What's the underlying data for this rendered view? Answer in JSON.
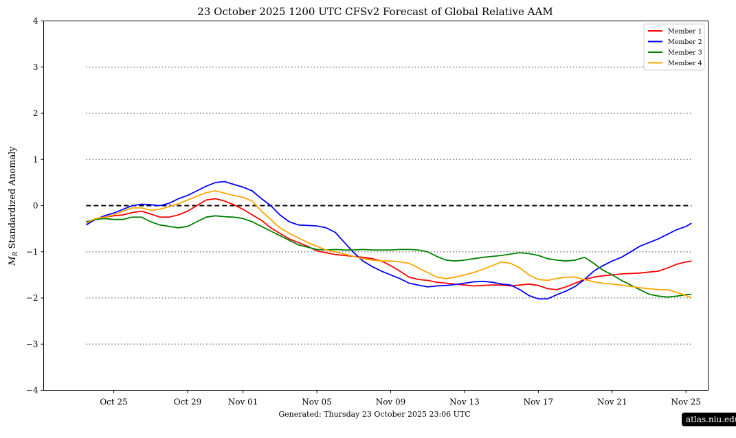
{
  "footer": {
    "generated": "Generated: Thursday  23  October  2025  23:06 UTC"
  },
  "watermark": {
    "text": "atlas.niu.edu"
  },
  "chart_data": {
    "type": "line",
    "title": "23  October  2025 1200 UTC   CFSv2 Forecast of Global Relative AAM",
    "ylabel": "M_R Standardized Anomaly",
    "xlabel": "",
    "ylim": [
      -4,
      4
    ],
    "yticks": [
      -4,
      -3,
      -2,
      -1,
      0,
      1,
      2,
      3,
      4
    ],
    "ytick_labels": [
      "−4",
      "−3",
      "−2",
      "−1",
      "0",
      "1",
      "2",
      "3",
      "4"
    ],
    "xlim": [
      -3.8,
      32.2
    ],
    "xticks": [
      {
        "x": 0,
        "label": "Oct 25"
      },
      {
        "x": 4,
        "label": "Oct 29"
      },
      {
        "x": 7,
        "label": "Nov 01"
      },
      {
        "x": 11,
        "label": "Nov 05"
      },
      {
        "x": 15,
        "label": "Nov 09"
      },
      {
        "x": 19,
        "label": "Nov 13"
      },
      {
        "x": 23,
        "label": "Nov 17"
      },
      {
        "x": 27,
        "label": "Nov 21"
      },
      {
        "x": 31,
        "label": "Nov 25"
      }
    ],
    "reference_lines": [
      {
        "y": 0,
        "style": "dashed"
      },
      {
        "y": 3,
        "style": "dotted"
      },
      {
        "y": 2,
        "style": "dotted"
      },
      {
        "y": 1,
        "style": "dotted"
      },
      {
        "y": -1,
        "style": "dotted"
      },
      {
        "y": -2,
        "style": "dotted"
      },
      {
        "y": -3,
        "style": "dotted"
      }
    ],
    "legend_position": "top-right",
    "grid": false,
    "series": [
      {
        "name": "Member 1",
        "color": "#ff0000",
        "points": [
          [
            -1.5,
            -0.38
          ],
          [
            -1,
            -0.3
          ],
          [
            -0.5,
            -0.25
          ],
          [
            0,
            -0.22
          ],
          [
            0.5,
            -0.2
          ],
          [
            1,
            -0.15
          ],
          [
            1.5,
            -0.12
          ],
          [
            2,
            -0.18
          ],
          [
            2.5,
            -0.25
          ],
          [
            3,
            -0.25
          ],
          [
            3.5,
            -0.2
          ],
          [
            4,
            -0.12
          ],
          [
            4.5,
            0.0
          ],
          [
            5,
            0.12
          ],
          [
            5.5,
            0.15
          ],
          [
            6,
            0.1
          ],
          [
            6.5,
            0.02
          ],
          [
            7,
            -0.08
          ],
          [
            7.5,
            -0.2
          ],
          [
            8,
            -0.32
          ],
          [
            8.5,
            -0.48
          ],
          [
            9,
            -0.6
          ],
          [
            9.5,
            -0.72
          ],
          [
            10,
            -0.8
          ],
          [
            10.5,
            -0.88
          ],
          [
            11,
            -0.98
          ],
          [
            11.5,
            -1.02
          ],
          [
            12,
            -1.06
          ],
          [
            12.5,
            -1.08
          ],
          [
            13,
            -1.1
          ],
          [
            13.5,
            -1.12
          ],
          [
            14,
            -1.15
          ],
          [
            14.5,
            -1.2
          ],
          [
            15,
            -1.3
          ],
          [
            15.5,
            -1.42
          ],
          [
            16,
            -1.55
          ],
          [
            16.5,
            -1.6
          ],
          [
            17,
            -1.62
          ],
          [
            17.5,
            -1.66
          ],
          [
            18,
            -1.68
          ],
          [
            18.5,
            -1.7
          ],
          [
            19,
            -1.72
          ],
          [
            19.5,
            -1.74
          ],
          [
            20,
            -1.73
          ],
          [
            20.5,
            -1.72
          ],
          [
            21,
            -1.72
          ],
          [
            21.5,
            -1.74
          ],
          [
            22,
            -1.72
          ],
          [
            22.5,
            -1.7
          ],
          [
            23,
            -1.73
          ],
          [
            23.5,
            -1.8
          ],
          [
            24,
            -1.82
          ],
          [
            24.5,
            -1.76
          ],
          [
            25,
            -1.68
          ],
          [
            25.5,
            -1.6
          ],
          [
            26,
            -1.55
          ],
          [
            26.5,
            -1.52
          ],
          [
            27,
            -1.5
          ],
          [
            27.5,
            -1.48
          ],
          [
            28,
            -1.47
          ],
          [
            28.5,
            -1.46
          ],
          [
            29,
            -1.44
          ],
          [
            29.5,
            -1.42
          ],
          [
            30,
            -1.35
          ],
          [
            30.5,
            -1.27
          ],
          [
            31,
            -1.22
          ],
          [
            31.3,
            -1.2
          ]
        ]
      },
      {
        "name": "Member 2",
        "color": "#0000ff",
        "points": [
          [
            -1.5,
            -0.42
          ],
          [
            -1,
            -0.3
          ],
          [
            -0.5,
            -0.22
          ],
          [
            0,
            -0.16
          ],
          [
            0.5,
            -0.08
          ],
          [
            1,
            0.0
          ],
          [
            1.5,
            0.03
          ],
          [
            2,
            0.02
          ],
          [
            2.5,
            0.0
          ],
          [
            3,
            0.05
          ],
          [
            3.5,
            0.15
          ],
          [
            4,
            0.22
          ],
          [
            4.5,
            0.32
          ],
          [
            5,
            0.42
          ],
          [
            5.5,
            0.5
          ],
          [
            6,
            0.52
          ],
          [
            6.5,
            0.46
          ],
          [
            7,
            0.4
          ],
          [
            7.5,
            0.32
          ],
          [
            8,
            0.15
          ],
          [
            8.5,
            0.0
          ],
          [
            9,
            -0.2
          ],
          [
            9.5,
            -0.35
          ],
          [
            10,
            -0.42
          ],
          [
            10.5,
            -0.43
          ],
          [
            11,
            -0.44
          ],
          [
            11.5,
            -0.48
          ],
          [
            12,
            -0.58
          ],
          [
            12.5,
            -0.8
          ],
          [
            13,
            -1.02
          ],
          [
            13.5,
            -1.2
          ],
          [
            14,
            -1.32
          ],
          [
            14.5,
            -1.42
          ],
          [
            15,
            -1.5
          ],
          [
            15.5,
            -1.58
          ],
          [
            16,
            -1.68
          ],
          [
            16.5,
            -1.72
          ],
          [
            17,
            -1.76
          ],
          [
            17.5,
            -1.74
          ],
          [
            18,
            -1.73
          ],
          [
            18.5,
            -1.71
          ],
          [
            19,
            -1.68
          ],
          [
            19.5,
            -1.65
          ],
          [
            20,
            -1.64
          ],
          [
            20.5,
            -1.66
          ],
          [
            21,
            -1.7
          ],
          [
            21.5,
            -1.72
          ],
          [
            22,
            -1.82
          ],
          [
            22.5,
            -1.95
          ],
          [
            23,
            -2.02
          ],
          [
            23.5,
            -2.02
          ],
          [
            24,
            -1.93
          ],
          [
            24.5,
            -1.85
          ],
          [
            25,
            -1.75
          ],
          [
            25.5,
            -1.6
          ],
          [
            26,
            -1.42
          ],
          [
            26.5,
            -1.3
          ],
          [
            27,
            -1.2
          ],
          [
            27.5,
            -1.12
          ],
          [
            28,
            -1.0
          ],
          [
            28.5,
            -0.88
          ],
          [
            29,
            -0.8
          ],
          [
            29.5,
            -0.72
          ],
          [
            30,
            -0.62
          ],
          [
            30.5,
            -0.52
          ],
          [
            31,
            -0.45
          ],
          [
            31.3,
            -0.38
          ]
        ]
      },
      {
        "name": "Member 3",
        "color": "#008000",
        "points": [
          [
            -1.5,
            -0.35
          ],
          [
            -1,
            -0.3
          ],
          [
            -0.5,
            -0.28
          ],
          [
            0,
            -0.3
          ],
          [
            0.5,
            -0.3
          ],
          [
            1,
            -0.25
          ],
          [
            1.5,
            -0.25
          ],
          [
            2,
            -0.35
          ],
          [
            2.5,
            -0.42
          ],
          [
            3,
            -0.45
          ],
          [
            3.5,
            -0.48
          ],
          [
            4,
            -0.45
          ],
          [
            4.5,
            -0.35
          ],
          [
            5,
            -0.25
          ],
          [
            5.5,
            -0.22
          ],
          [
            6,
            -0.24
          ],
          [
            6.5,
            -0.25
          ],
          [
            7,
            -0.28
          ],
          [
            7.5,
            -0.35
          ],
          [
            8,
            -0.45
          ],
          [
            8.5,
            -0.55
          ],
          [
            9,
            -0.65
          ],
          [
            9.5,
            -0.75
          ],
          [
            10,
            -0.85
          ],
          [
            10.5,
            -0.9
          ],
          [
            11,
            -0.95
          ],
          [
            11.5,
            -0.96
          ],
          [
            12,
            -0.95
          ],
          [
            12.5,
            -0.96
          ],
          [
            13,
            -0.96
          ],
          [
            13.5,
            -0.95
          ],
          [
            14,
            -0.96
          ],
          [
            14.5,
            -0.96
          ],
          [
            15,
            -0.96
          ],
          [
            15.5,
            -0.95
          ],
          [
            16,
            -0.95
          ],
          [
            16.5,
            -0.96
          ],
          [
            17,
            -1.0
          ],
          [
            17.5,
            -1.1
          ],
          [
            18,
            -1.18
          ],
          [
            18.5,
            -1.2
          ],
          [
            19,
            -1.18
          ],
          [
            19.5,
            -1.15
          ],
          [
            20,
            -1.12
          ],
          [
            20.5,
            -1.1
          ],
          [
            21,
            -1.08
          ],
          [
            21.5,
            -1.05
          ],
          [
            22,
            -1.02
          ],
          [
            22.5,
            -1.04
          ],
          [
            23,
            -1.08
          ],
          [
            23.5,
            -1.15
          ],
          [
            24,
            -1.18
          ],
          [
            24.5,
            -1.2
          ],
          [
            25,
            -1.18
          ],
          [
            25.5,
            -1.12
          ],
          [
            26,
            -1.25
          ],
          [
            26.5,
            -1.4
          ],
          [
            27,
            -1.5
          ],
          [
            27.5,
            -1.62
          ],
          [
            28,
            -1.72
          ],
          [
            28.5,
            -1.82
          ],
          [
            29,
            -1.92
          ],
          [
            29.5,
            -1.96
          ],
          [
            30,
            -1.98
          ],
          [
            30.5,
            -1.96
          ],
          [
            31,
            -1.93
          ],
          [
            31.3,
            -1.92
          ]
        ]
      },
      {
        "name": "Member 4",
        "color": "#ffa500",
        "points": [
          [
            -1.5,
            -0.38
          ],
          [
            -1,
            -0.28
          ],
          [
            -0.5,
            -0.25
          ],
          [
            0,
            -0.2
          ],
          [
            0.5,
            -0.12
          ],
          [
            1,
            -0.05
          ],
          [
            1.5,
            -0.05
          ],
          [
            2,
            -0.1
          ],
          [
            2.5,
            -0.08
          ],
          [
            3,
            -0.02
          ],
          [
            3.5,
            0.04
          ],
          [
            4,
            0.12
          ],
          [
            4.5,
            0.2
          ],
          [
            5,
            0.28
          ],
          [
            5.5,
            0.32
          ],
          [
            6,
            0.27
          ],
          [
            6.5,
            0.22
          ],
          [
            7,
            0.18
          ],
          [
            7.5,
            0.1
          ],
          [
            8,
            -0.12
          ],
          [
            8.5,
            -0.3
          ],
          [
            9,
            -0.48
          ],
          [
            9.5,
            -0.6
          ],
          [
            10,
            -0.7
          ],
          [
            10.5,
            -0.8
          ],
          [
            11,
            -0.88
          ],
          [
            11.5,
            -0.96
          ],
          [
            12,
            -1.0
          ],
          [
            12.5,
            -1.05
          ],
          [
            13,
            -1.1
          ],
          [
            13.5,
            -1.15
          ],
          [
            14,
            -1.18
          ],
          [
            14.5,
            -1.2
          ],
          [
            15,
            -1.2
          ],
          [
            15.5,
            -1.22
          ],
          [
            16,
            -1.25
          ],
          [
            16.5,
            -1.35
          ],
          [
            17,
            -1.45
          ],
          [
            17.5,
            -1.55
          ],
          [
            18,
            -1.58
          ],
          [
            18.5,
            -1.55
          ],
          [
            19,
            -1.5
          ],
          [
            19.5,
            -1.45
          ],
          [
            20,
            -1.38
          ],
          [
            20.5,
            -1.3
          ],
          [
            21,
            -1.22
          ],
          [
            21.5,
            -1.25
          ],
          [
            22,
            -1.35
          ],
          [
            22.5,
            -1.5
          ],
          [
            23,
            -1.6
          ],
          [
            23.5,
            -1.62
          ],
          [
            24,
            -1.58
          ],
          [
            24.5,
            -1.55
          ],
          [
            25,
            -1.55
          ],
          [
            25.5,
            -1.6
          ],
          [
            26,
            -1.65
          ],
          [
            26.5,
            -1.68
          ],
          [
            27,
            -1.7
          ],
          [
            27.5,
            -1.72
          ],
          [
            28,
            -1.75
          ],
          [
            28.5,
            -1.78
          ],
          [
            29,
            -1.8
          ],
          [
            29.5,
            -1.82
          ],
          [
            30,
            -1.82
          ],
          [
            30.5,
            -1.88
          ],
          [
            31,
            -1.95
          ],
          [
            31.3,
            -2.0
          ]
        ]
      }
    ]
  }
}
